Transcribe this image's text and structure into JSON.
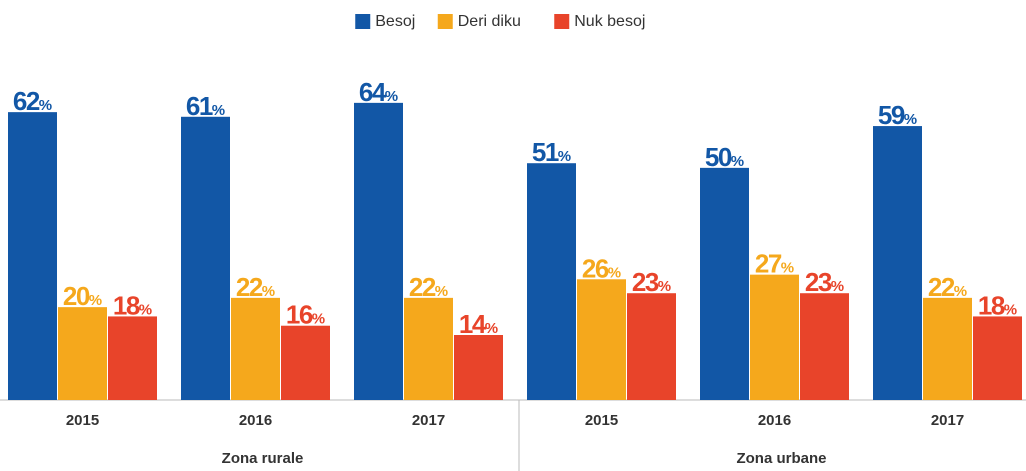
{
  "chart_data": {
    "type": "bar",
    "category_groups": [
      {
        "name": "Zona rurale",
        "categories": [
          "2015",
          "2016",
          "2017"
        ]
      },
      {
        "name": "Zona urbane",
        "categories": [
          "2015",
          "2016",
          "2017"
        ]
      }
    ],
    "series": [
      {
        "name": "Besoj",
        "color": "#1257a6",
        "values": [
          62,
          61,
          64,
          51,
          50,
          59
        ],
        "value_labels": [
          "62%",
          "61%",
          "64%",
          "51%",
          "50%",
          "59%"
        ]
      },
      {
        "name": "Deri diku",
        "color": "#f5a81c",
        "values": [
          20,
          22,
          22,
          26,
          27,
          22
        ],
        "value_labels": [
          "20%",
          "22%",
          "22%",
          "26%",
          "27%",
          "22%"
        ]
      },
      {
        "name": "Nuk besoj",
        "color": "#e8442a",
        "values": [
          18,
          16,
          14,
          23,
          23,
          18
        ],
        "value_labels": [
          "18%",
          "16%",
          "14%",
          "23%",
          "23%",
          "18%"
        ]
      }
    ],
    "ylim": [
      0,
      70
    ],
    "legend": "top"
  }
}
